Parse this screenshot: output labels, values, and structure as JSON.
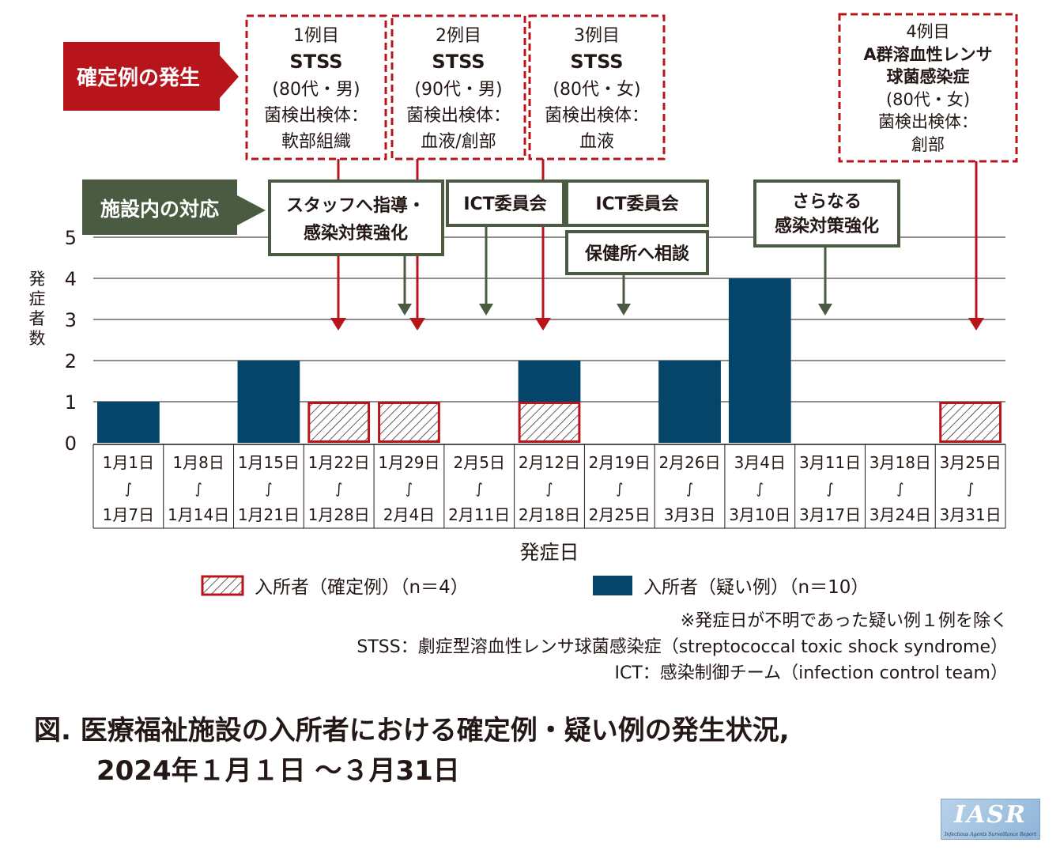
{
  "colors": {
    "suspect": "#05456a",
    "confirmed_border": "#b8141c",
    "red": "#b8141c",
    "green": "#4a5b41",
    "grid": "#231815"
  },
  "labels": {
    "confirmed_header": "確定例の発生",
    "facility_header": "施設内の対応",
    "y_axis": "発症者数",
    "x_axis": "発症日",
    "wave": "∫"
  },
  "cases": [
    {
      "line1": "1例目",
      "line2": "STSS",
      "line3": "(80代・男)",
      "line4": "菌検出検体：",
      "line5": "軟部組織"
    },
    {
      "line1": "2例目",
      "line2": "STSS",
      "line3": "(90代・男)",
      "line4": "菌検出検体：",
      "line5": "血液/創部"
    },
    {
      "line1": "3例目",
      "line2": "STSS",
      "line3": "(80代・女)",
      "line4": "菌検出検体：",
      "line5": "血液"
    },
    {
      "line1": "4例目",
      "line2": "A群溶血性レンサ",
      "line2b": "球菌感染症",
      "line3": "(80代・女)",
      "line4": "菌検出検体：",
      "line5": "創部"
    }
  ],
  "actions": [
    {
      "line1": "スタッフへ指導・",
      "line2": "感染対策強化"
    },
    {
      "line1": "ICT委員会"
    },
    {
      "line1": "ICT委員会"
    },
    {
      "line1": "保健所へ相談"
    },
    {
      "line1": "さらなる",
      "line2": "感染対策強化"
    }
  ],
  "chart_data": {
    "type": "bar",
    "categories": [
      {
        "start": "1月1日",
        "end": "1月7日"
      },
      {
        "start": "1月8日",
        "end": "1月14日"
      },
      {
        "start": "1月15日",
        "end": "1月21日"
      },
      {
        "start": "1月22日",
        "end": "1月28日"
      },
      {
        "start": "1月29日",
        "end": "2月4日"
      },
      {
        "start": "2月5日",
        "end": "2月11日"
      },
      {
        "start": "2月12日",
        "end": "2月18日"
      },
      {
        "start": "2月19日",
        "end": "2月25日"
      },
      {
        "start": "2月26日",
        "end": "3月3日"
      },
      {
        "start": "3月4日",
        "end": "3月10日"
      },
      {
        "start": "3月11日",
        "end": "3月17日"
      },
      {
        "start": "3月18日",
        "end": "3月24日"
      },
      {
        "start": "3月25日",
        "end": "3月31日"
      }
    ],
    "series": [
      {
        "name": "入所者（確定例）（n＝4）",
        "values": [
          0,
          0,
          0,
          1,
          1,
          0,
          1,
          0,
          0,
          0,
          0,
          0,
          1
        ]
      },
      {
        "name": "入所者（疑い例）（n＝10）",
        "values": [
          1,
          0,
          2,
          0,
          0,
          0,
          1,
          0,
          2,
          4,
          0,
          0,
          0
        ]
      }
    ],
    "ylim": [
      0,
      5
    ],
    "yticks": [
      "0",
      "1",
      "2",
      "3",
      "4",
      "5"
    ],
    "stacked": true,
    "xlabel": "発症日",
    "ylabel": "発症者数"
  },
  "legend": {
    "confirmed": "入所者（確定例）（n＝4）",
    "suspect": "入所者（疑い例）（n＝10）"
  },
  "notes": {
    "note1": "※発症日が不明であった疑い例１例を除く",
    "note2": "STSS：劇症型溶血性レンサ球菌感染症（streptococcal toxic shock syndrome）",
    "note3": "ICT：感染制御チーム（infection control team）"
  },
  "caption": {
    "line1": "図. 医療福祉施設の入所者における確定例・疑い例の発生状況,",
    "line2": "2024年１月１日 ～３月31日"
  },
  "logo": {
    "main": "IASR",
    "sub": "Infectious Agents Surveillance Report"
  }
}
